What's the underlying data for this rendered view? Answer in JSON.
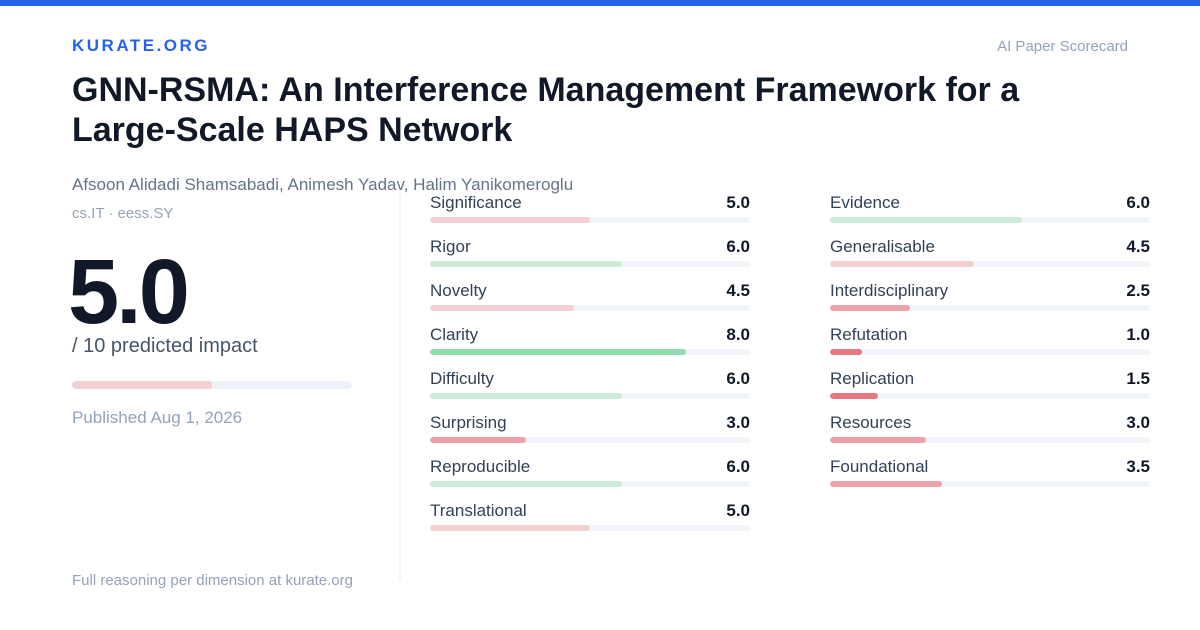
{
  "header": {
    "brand": "KURATE.ORG",
    "tag": "AI Paper Scorecard"
  },
  "paper": {
    "title": "GNN-RSMA: An Interference Management Framework for a Large-Scale HAPS Network",
    "authors": "Afsoon Alidadi Shamsabadi, Animesh Yadav, Halim Yanikomeroglu",
    "categories": "cs.IT · eess.SY",
    "published": "Published Aug 1, 2026"
  },
  "impact": {
    "score": {
      "value": 5,
      "label": "5.0"
    },
    "caption": "/ 10 predicted impact",
    "color": "#f2d0d3"
  },
  "scale": [
    0,
    10
  ],
  "dimensions": [
    {
      "name": "Significance",
      "score": {
        "value": 5,
        "label": "5.0"
      },
      "color": "#f2d0d3"
    },
    {
      "name": "Rigor",
      "score": {
        "value": 6,
        "label": "6.0"
      },
      "color": "#cdebd9"
    },
    {
      "name": "Novelty",
      "score": {
        "value": 4.5,
        "label": "4.5"
      },
      "color": "#f2d0d3"
    },
    {
      "name": "Clarity",
      "score": {
        "value": 8,
        "label": "8.0"
      },
      "color": "#8fdcae"
    },
    {
      "name": "Difficulty",
      "score": {
        "value": 6,
        "label": "6.0"
      },
      "color": "#cdebd9"
    },
    {
      "name": "Surprising",
      "score": {
        "value": 3,
        "label": "3.0"
      },
      "color": "#eba1a7"
    },
    {
      "name": "Reproducible",
      "score": {
        "value": 6,
        "label": "6.0"
      },
      "color": "#cdebd9"
    },
    {
      "name": "Translational",
      "score": {
        "value": 5,
        "label": "5.0"
      },
      "color": "#f2d0d3"
    },
    {
      "name": "Evidence",
      "score": {
        "value": 6,
        "label": "6.0"
      },
      "color": "#cdebd9"
    },
    {
      "name": "Generalisable",
      "score": {
        "value": 4.5,
        "label": "4.5"
      },
      "color": "#f2d0d3"
    },
    {
      "name": "Interdisciplinary",
      "score": {
        "value": 2.5,
        "label": "2.5"
      },
      "color": "#eba1a7"
    },
    {
      "name": "Refutation",
      "score": {
        "value": 1,
        "label": "1.0"
      },
      "color": "#e8767e"
    },
    {
      "name": "Replication",
      "score": {
        "value": 1.5,
        "label": "1.5"
      },
      "color": "#e8767e"
    },
    {
      "name": "Resources",
      "score": {
        "value": 3,
        "label": "3.0"
      },
      "color": "#eba1a7"
    },
    {
      "name": "Foundational",
      "score": {
        "value": 3.5,
        "label": "3.5"
      },
      "color": "#eba1a7"
    }
  ],
  "footer": "Full reasoning per dimension at kurate.org"
}
